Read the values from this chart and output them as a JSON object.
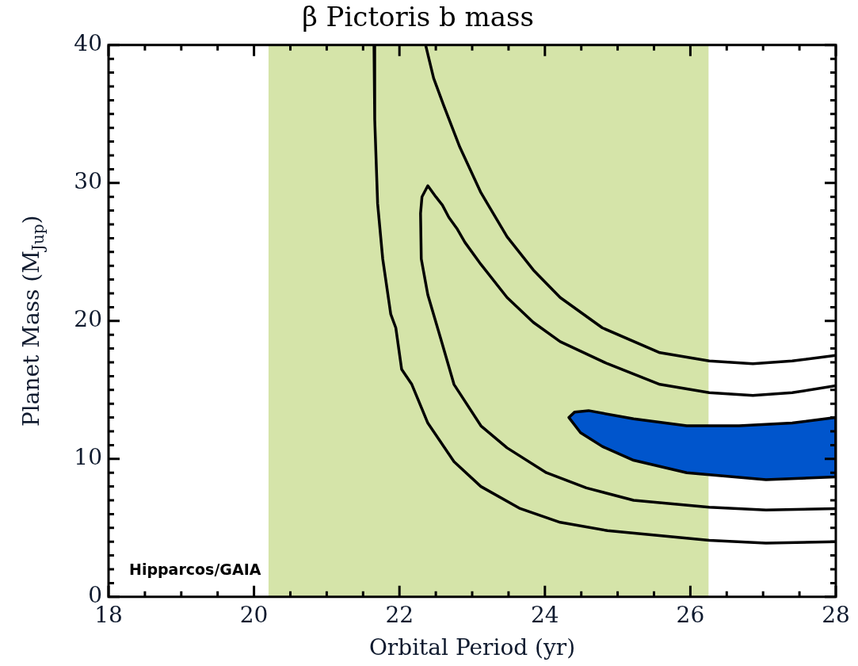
{
  "chart_data": {
    "type": "line",
    "title": "β Pictoris b mass",
    "xlabel": "Orbital Period (yr)",
    "ylabel": "Planet Mass (M$_{Jup}$)",
    "xlim": [
      18,
      28
    ],
    "xticks": [
      18,
      {
        "value": 18.5,
        "label": null
      },
      {
        "value": 19,
        "label": null
      },
      {
        "value": 19.5,
        "label": null
      },
      20,
      {
        "value": 20.5,
        "label": null
      },
      {
        "value": 21,
        "label": null
      },
      {
        "value": 21.5,
        "label": null
      },
      22,
      {
        "value": 22.5,
        "label": null
      },
      {
        "value": 23,
        "label": null
      },
      {
        "value": 23.5,
        "label": null
      },
      24,
      {
        "value": 24.5,
        "label": null
      },
      {
        "value": 25,
        "label": null
      },
      {
        "value": 25.5,
        "label": null
      },
      26,
      {
        "value": 26.5,
        "label": null
      },
      {
        "value": 27,
        "label": null
      },
      {
        "value": 27.5,
        "label": null
      },
      28
    ],
    "ylim": [
      0,
      40
    ],
    "yticks": [
      0,
      {
        "value": 1,
        "label": null
      },
      {
        "value": 2,
        "label": null
      },
      {
        "value": 3,
        "label": null
      },
      {
        "value": 4,
        "label": null
      },
      {
        "value": 5,
        "label": null
      },
      {
        "value": 6,
        "label": null
      },
      {
        "value": 7,
        "label": null
      },
      {
        "value": 8,
        "label": null
      },
      {
        "value": 9,
        "label": null
      },
      10,
      {
        "value": 11,
        "label": null
      },
      {
        "value": 12,
        "label": null
      },
      {
        "value": 13,
        "label": null
      },
      {
        "value": 14,
        "label": null
      },
      {
        "value": 15,
        "label": null
      },
      {
        "value": 16,
        "label": null
      },
      {
        "value": 17,
        "label": null
      },
      {
        "value": 18,
        "label": null
      },
      {
        "value": 19,
        "label": null
      },
      20,
      {
        "value": 21,
        "label": null
      },
      {
        "value": 22,
        "label": null
      },
      {
        "value": 23,
        "label": null
      },
      {
        "value": 24,
        "label": null
      },
      {
        "value": 25,
        "label": null
      },
      {
        "value": 26,
        "label": null
      },
      {
        "value": 27,
        "label": null
      },
      {
        "value": 28,
        "label": null
      },
      {
        "value": 29,
        "label": null
      },
      30,
      {
        "value": 31,
        "label": null
      },
      {
        "value": 32,
        "label": null
      },
      {
        "value": 33,
        "label": null
      },
      {
        "value": 34,
        "label": null
      },
      {
        "value": 35,
        "label": null
      },
      {
        "value": 36,
        "label": null
      },
      {
        "value": 37,
        "label": null
      },
      {
        "value": 38,
        "label": null
      },
      {
        "value": 39,
        "label": null
      },
      40
    ],
    "grid": false,
    "legend": false,
    "marker": "none",
    "line_style": "solid",
    "bands": [
      {
        "axis": "x",
        "from": 20.2,
        "to": 26.25,
        "color": "#d5e4a9"
      }
    ],
    "annotations": [
      "Hipparcos/GAIA"
    ],
    "series": [
      {
        "color": "#000000",
        "x": [
          21.65,
          21.66,
          21.7,
          21.77,
          21.88,
          21.95,
          22.03,
          22.17,
          22.39,
          22.75,
          23.12,
          23.66,
          24.21,
          24.86,
          26.26,
          27.04,
          28
        ],
        "values": [
          40,
          34.6,
          28.5,
          24.5,
          20.5,
          19.5,
          16.5,
          15.4,
          12.6,
          9.8,
          8.0,
          6.4,
          5.4,
          4.8,
          4.1,
          3.9,
          4.0
        ]
      },
      {
        "color": "#000000",
        "x": [
          22.36,
          22.47,
          22.61,
          22.83,
          23.12,
          23.48,
          23.84,
          24.21,
          24.79,
          25.58,
          26.26,
          26.86,
          27.4,
          28
        ],
        "values": [
          40,
          37.6,
          35.6,
          32.6,
          29.3,
          26.1,
          23.7,
          21.7,
          19.5,
          17.7,
          17.1,
          16.9,
          17.1,
          17.5
        ]
      },
      {
        "color": "#000000",
        "x": [
          28,
          27.04,
          26.26,
          25.22,
          24.57,
          24.02,
          23.48,
          23.12,
          22.75,
          22.58,
          22.39,
          22.3,
          22.29,
          22.31,
          22.39,
          22.5,
          22.59,
          22.68,
          22.79,
          22.9,
          23.12,
          23.48,
          23.84,
          24.21,
          24.86,
          25.58,
          26.26,
          26.86,
          27.4,
          28
        ],
        "values": [
          6.4,
          6.3,
          6.5,
          7.0,
          7.9,
          9.0,
          10.8,
          12.4,
          15.4,
          18.5,
          21.9,
          24.5,
          27.8,
          29.0,
          29.8,
          29.0,
          28.4,
          27.5,
          26.7,
          25.7,
          24.1,
          21.7,
          19.9,
          18.5,
          16.9,
          15.4,
          14.8,
          14.6,
          14.8,
          15.3
        ]
      },
      {
        "type": "area",
        "color": "#0055cc",
        "x": [
          24.33,
          24.41,
          24.6,
          25.22,
          25.95,
          26.67,
          27.4,
          28,
          28,
          27.04,
          25.95,
          25.22,
          24.79,
          24.49,
          24.33
        ],
        "values": [
          13.0,
          13.4,
          13.5,
          12.9,
          12.4,
          12.4,
          12.6,
          13.0,
          8.7,
          8.5,
          9.0,
          9.9,
          10.9,
          11.9,
          13.0
        ]
      }
    ]
  }
}
